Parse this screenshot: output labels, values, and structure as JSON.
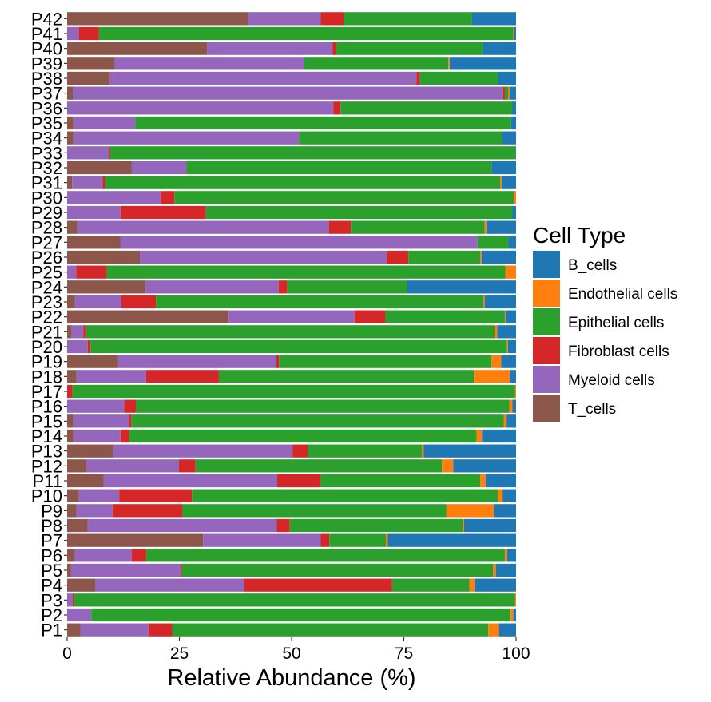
{
  "chart_data": {
    "type": "bar",
    "orientation": "horizontal",
    "stacked": true,
    "title": "",
    "xlabel": "Relative Abundance (%)",
    "ylabel": "",
    "xlim": [
      0,
      100
    ],
    "xticks": [
      0,
      25,
      50,
      75,
      100
    ],
    "grid": false,
    "legend_position": "right",
    "legend_title": "Cell Type",
    "categories": [
      "P1",
      "P2",
      "P3",
      "P4",
      "P5",
      "P6",
      "P7",
      "P8",
      "P9",
      "P10",
      "P11",
      "P12",
      "P13",
      "P14",
      "P15",
      "P16",
      "P17",
      "P18",
      "P19",
      "P20",
      "P21",
      "P22",
      "P23",
      "P24",
      "P25",
      "P26",
      "P27",
      "P28",
      "P29",
      "P30",
      "P31",
      "P32",
      "P33",
      "P34",
      "P35",
      "P36",
      "P37",
      "P38",
      "P39",
      "P40",
      "P41",
      "P42"
    ],
    "series": [
      {
        "name": "T_cells",
        "color": "#8c564b",
        "values": [
          3.0,
          0.0,
          0.0,
          6.3,
          0.8,
          1.7,
          30.3,
          4.6,
          2.1,
          2.6,
          8.1,
          4.4,
          10.2,
          1.5,
          1.5,
          0.0,
          0.0,
          2.1,
          11.3,
          0.0,
          1.0,
          36.0,
          1.7,
          17.5,
          0.0,
          16.2,
          11.9,
          2.3,
          0.0,
          0.0,
          1.1,
          14.4,
          0.0,
          1.5,
          1.5,
          0.0,
          1.3,
          9.5,
          10.6,
          31.2,
          0.0,
          40.3
        ]
      },
      {
        "name": "Myeloid cells",
        "color": "#9467bd",
        "values": [
          15.1,
          5.4,
          1.3,
          33.2,
          24.5,
          12.7,
          26.2,
          42.1,
          8.0,
          9.0,
          38.7,
          20.5,
          40.0,
          10.4,
          12.2,
          12.7,
          0.0,
          15.5,
          35.3,
          4.6,
          2.6,
          28.0,
          10.4,
          29.6,
          2.0,
          55.0,
          79.5,
          56.0,
          11.9,
          20.8,
          6.8,
          12.2,
          9.3,
          50.2,
          13.7,
          59.3,
          95.8,
          68.3,
          42.2,
          27.9,
          2.6,
          16.2
        ]
      },
      {
        "name": "Fibroblast cells",
        "color": "#d62728",
        "values": [
          5.3,
          0.0,
          0.3,
          32.9,
          0.3,
          3.2,
          1.9,
          2.9,
          15.6,
          16.2,
          9.6,
          3.7,
          3.4,
          1.9,
          0.6,
          2.6,
          1.2,
          16.2,
          0.6,
          0.6,
          0.6,
          6.9,
          7.7,
          1.9,
          6.8,
          4.8,
          0.0,
          4.9,
          19.0,
          3.1,
          0.6,
          0.0,
          0.3,
          0.0,
          0.0,
          1.6,
          0.4,
          0.8,
          0.0,
          0.8,
          4.5,
          5.1
        ]
      },
      {
        "name": "Epithelial cells",
        "color": "#2ca02c",
        "values": [
          70.4,
          93.4,
          98.2,
          17.2,
          69.3,
          79.9,
          12.6,
          38.5,
          58.8,
          68.2,
          35.6,
          54.9,
          25.4,
          77.4,
          83.0,
          83.2,
          98.6,
          56.8,
          47.3,
          92.8,
          91.0,
          26.6,
          72.8,
          26.7,
          88.8,
          16.0,
          6.9,
          29.8,
          68.3,
          75.6,
          88.0,
          68.0,
          90.3,
          45.2,
          83.7,
          38.3,
          0.8,
          17.4,
          32.1,
          32.7,
          92.3,
          28.6
        ]
      },
      {
        "name": "Endothelial cells",
        "color": "#ff7f0e",
        "values": [
          2.4,
          0.6,
          0.2,
          1.2,
          0.6,
          0.5,
          0.4,
          0.3,
          10.5,
          1.0,
          1.2,
          2.5,
          0.4,
          1.2,
          0.6,
          0.7,
          0.2,
          8.0,
          2.2,
          0.2,
          0.6,
          0.2,
          0.4,
          0.0,
          2.4,
          0.3,
          0.0,
          0.4,
          0.0,
          0.5,
          0.3,
          0.0,
          0.0,
          0.0,
          0.0,
          0.0,
          0.3,
          0.0,
          0.3,
          0.0,
          0.2,
          0.0
        ]
      },
      {
        "name": "B_cells",
        "color": "#1f77b4",
        "values": [
          3.8,
          0.6,
          0.0,
          9.2,
          4.5,
          2.0,
          28.6,
          11.6,
          5.0,
          3.0,
          6.8,
          14.0,
          20.6,
          7.6,
          2.1,
          0.8,
          0.0,
          1.4,
          3.3,
          1.8,
          4.2,
          2.3,
          7.0,
          24.3,
          0.0,
          7.7,
          1.7,
          6.6,
          0.8,
          0.0,
          3.2,
          5.4,
          0.1,
          3.1,
          1.1,
          0.8,
          1.4,
          4.0,
          14.8,
          7.4,
          0.4,
          9.8
        ]
      }
    ],
    "legend_order": [
      "B_cells",
      "Endothelial cells",
      "Epithelial cells",
      "Fibroblast cells",
      "Myeloid cells",
      "T_cells"
    ]
  }
}
